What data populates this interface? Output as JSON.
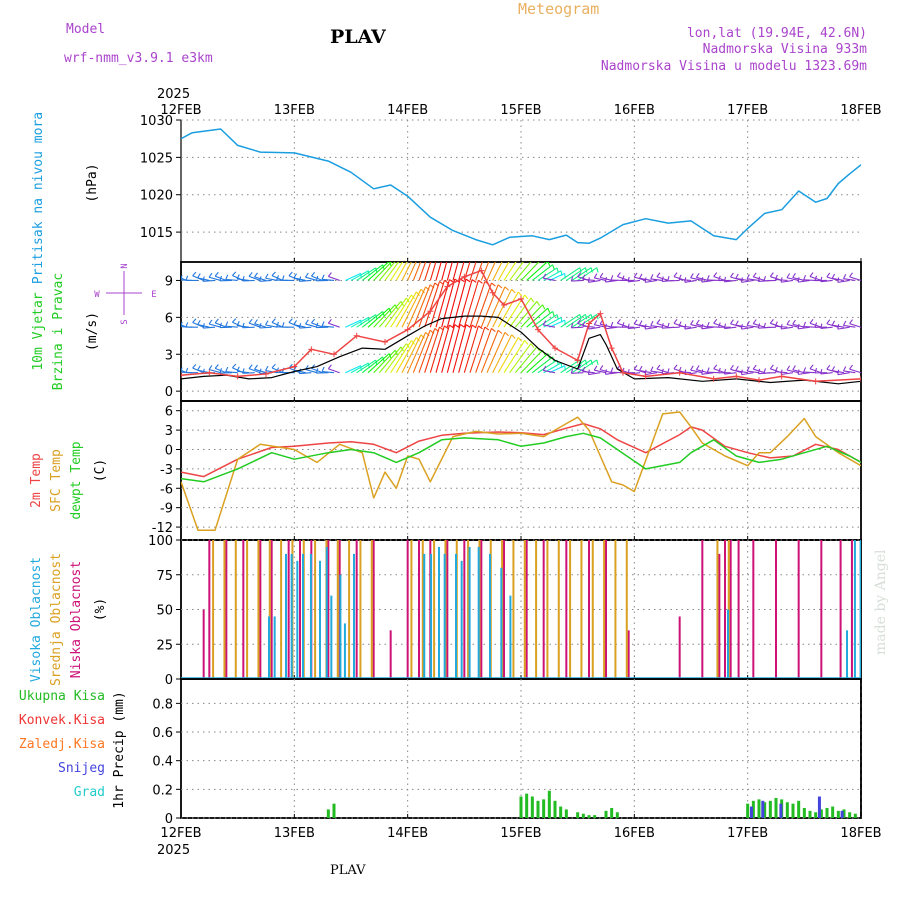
{
  "header": {
    "model_label": "Model",
    "model_name": "wrf-nmm_v3.9.1 e3km",
    "station": "PLAV",
    "meteogram": "Meteogram",
    "lonlat": "lon,lat (19.94E, 42.6N)",
    "elevation": "Nadmorska Visina 933m",
    "model_elevation": "Nadmorska Visina u modelu 1323.69m",
    "footer_station": "PLAV",
    "made_by": "made by Angel"
  },
  "colors": {
    "pressure": "#1a9ee0",
    "temp2m": "#ee4444",
    "sfctemp": "#daa020",
    "dewpt": "#22cc22",
    "high_cloud": "#22aadd",
    "mid_cloud": "#daa020",
    "low_cloud": "#cc1177",
    "total_precip": "#22bb22",
    "conv_precip": "#ee3333",
    "frozen_precip": "#ff7722",
    "snow": "#4444dd",
    "graupel": "#22cccc",
    "header_purple": "#aa44cc",
    "header_orange": "#e8b060"
  },
  "chart_data": {
    "type": "line",
    "x_start_year": "2025",
    "x_end_year": "2025",
    "x_ticks": [
      "12FEB",
      "13FEB",
      "14FEB",
      "15FEB",
      "16FEB",
      "17FEB",
      "18FEB"
    ],
    "panels": [
      {
        "id": "pressure",
        "type": "line",
        "ylabel_main": "Pritisak na nivou mora",
        "ylabel_unit": "(hPa)",
        "ylim": [
          1011,
          1030
        ],
        "yticks": [
          "1015",
          "1020",
          "1025",
          "1030"
        ],
        "yticks_values": [
          1015,
          1020,
          1025,
          1030
        ],
        "series": [
          {
            "name": "Pritisak",
            "x": [
              0,
              0.1,
              0.35,
              0.5,
              0.7,
              1.0,
              1.3,
              1.5,
              1.7,
              1.85,
              2.0,
              2.2,
              2.4,
              2.6,
              2.75,
              2.9,
              3.1,
              3.25,
              3.4,
              3.5,
              3.6,
              3.7,
              3.9,
              4.1,
              4.3,
              4.5,
              4.7,
              4.9,
              5.0,
              5.15,
              5.3,
              5.45,
              5.6,
              5.7,
              5.8,
              5.9,
              6.0
            ],
            "values": [
              1027.5,
              1028.3,
              1028.8,
              1026.6,
              1025.7,
              1025.6,
              1024.5,
              1023.0,
              1020.8,
              1021.3,
              1019.8,
              1017.0,
              1015.2,
              1014.0,
              1013.3,
              1014.3,
              1014.5,
              1014.0,
              1014.6,
              1013.6,
              1013.5,
              1014.2,
              1016.0,
              1016.8,
              1016.2,
              1016.5,
              1014.5,
              1014.0,
              1015.5,
              1017.5,
              1018.0,
              1020.5,
              1019.0,
              1019.5,
              1021.5,
              1022.8,
              1024.0
            ]
          }
        ]
      },
      {
        "id": "wind",
        "type": "line",
        "ylabel_main": "10m Vjetar",
        "ylabel_sub": "Brzina i Pravac",
        "ylabel_unit": "(m/s)",
        "compass_labels": [
          "N",
          "W",
          "E",
          "S"
        ],
        "ylim": [
          -0.8,
          10.5
        ],
        "yticks": [
          "0",
          "3",
          "6",
          "9"
        ],
        "yticks_values": [
          0,
          3,
          6,
          9
        ],
        "barb_levels": [
          9,
          5.2,
          1.5
        ],
        "series": [
          {
            "name": "Brzina",
            "x": [
              0,
              0.2,
              0.4,
              0.6,
              0.8,
              1.0,
              1.2,
              1.4,
              1.6,
              1.8,
              2.0,
              2.15,
              2.3,
              2.5,
              2.65,
              2.8,
              3.0,
              3.15,
              3.3,
              3.5,
              3.6,
              3.7,
              3.75,
              3.85,
              4.0,
              4.3,
              4.6,
              4.9,
              5.2,
              5.5,
              5.8,
              6.0
            ],
            "values": [
              1.0,
              1.2,
              1.3,
              1.0,
              1.1,
              1.6,
              2.0,
              2.8,
              3.5,
              3.4,
              4.5,
              5.3,
              5.9,
              6.1,
              6.1,
              6.0,
              4.8,
              3.5,
              2.5,
              1.8,
              4.3,
              4.6,
              3.8,
              1.8,
              1.0,
              1.1,
              0.8,
              1.0,
              0.7,
              0.9,
              0.6,
              0.8
            ]
          },
          {
            "name": "Udari",
            "x": [
              0,
              0.25,
              0.5,
              0.75,
              1.0,
              1.15,
              1.35,
              1.55,
              1.8,
              2.0,
              2.2,
              2.35,
              2.5,
              2.65,
              2.75,
              2.85,
              3.0,
              3.15,
              3.3,
              3.5,
              3.6,
              3.7,
              3.8,
              3.9,
              4.1,
              4.4,
              4.7,
              4.9,
              5.1,
              5.3,
              5.6,
              6.0
            ],
            "values": [
              1.3,
              1.5,
              1.2,
              1.4,
              2.0,
              3.4,
              3.0,
              4.5,
              4.0,
              5.0,
              6.5,
              8.5,
              9.3,
              9.8,
              8.0,
              7.0,
              7.5,
              5.0,
              3.5,
              2.5,
              5.5,
              6.3,
              3.5,
              1.5,
              1.2,
              1.5,
              1.0,
              1.2,
              0.9,
              1.2,
              0.8,
              1.0
            ]
          }
        ]
      },
      {
        "id": "temperature",
        "type": "line",
        "ylabel_lines": [
          "2m Temp",
          "SFC Temp",
          "dewpt Temp"
        ],
        "ylabel_unit": "(C)",
        "ylim": [
          -14,
          7.5
        ],
        "yticks": [
          "-12",
          "-9",
          "-6",
          "-3",
          "0",
          "3",
          "6"
        ],
        "yticks_values": [
          -12,
          -9,
          -6,
          -3,
          0,
          3,
          6
        ],
        "series": [
          {
            "name": "2m Temp",
            "x": [
              0,
              0.2,
              0.5,
              0.8,
              1.0,
              1.3,
              1.5,
              1.7,
              1.9,
              2.1,
              2.3,
              2.5,
              2.8,
              3.0,
              3.2,
              3.4,
              3.55,
              3.7,
              3.85,
              4.1,
              4.4,
              4.5,
              4.6,
              4.8,
              5.0,
              5.2,
              5.4,
              5.6,
              5.8,
              6.0
            ],
            "values": [
              -3.5,
              -4.2,
              -1.5,
              0.3,
              0.5,
              1.0,
              1.2,
              0.8,
              -0.5,
              1.3,
              2.2,
              2.5,
              2.7,
              2.6,
              2.3,
              3.3,
              4.0,
              3.2,
              1.5,
              -0.5,
              2.3,
              3.5,
              3.0,
              0.5,
              -0.5,
              -1.3,
              -1.0,
              0.8,
              0.0,
              -2.0
            ]
          },
          {
            "name": "SFC Temp",
            "x": [
              0,
              0.15,
              0.3,
              0.5,
              0.7,
              1.0,
              1.2,
              1.4,
              1.6,
              1.7,
              1.8,
              1.9,
              2.0,
              2.1,
              2.2,
              2.4,
              2.6,
              2.8,
              3.0,
              3.2,
              3.4,
              3.5,
              3.6,
              3.7,
              3.8,
              3.9,
              4.0,
              4.25,
              4.4,
              4.5,
              4.6,
              4.8,
              5.0,
              5.1,
              5.2,
              5.35,
              5.5,
              5.6,
              5.8,
              6.0
            ],
            "values": [
              -5,
              -12.5,
              -12.5,
              -1.5,
              0.8,
              0.0,
              -2.0,
              0.8,
              -0.5,
              -7.5,
              -3.5,
              -6.0,
              -1.0,
              -1.5,
              -5.0,
              2.0,
              2.8,
              2.4,
              2.5,
              2.0,
              4.0,
              5.0,
              3.0,
              -1.0,
              -5.0,
              -5.5,
              -6.5,
              5.5,
              5.8,
              3.5,
              1.0,
              -1.0,
              -2.5,
              -0.5,
              -0.5,
              2.0,
              4.8,
              2.0,
              -0.5,
              -2.5
            ]
          },
          {
            "name": "dewpt Temp",
            "x": [
              0,
              0.2,
              0.5,
              0.8,
              1.0,
              1.3,
              1.5,
              1.7,
              1.9,
              2.1,
              2.3,
              2.5,
              2.8,
              3.0,
              3.2,
              3.4,
              3.55,
              3.7,
              3.85,
              4.1,
              4.4,
              4.5,
              4.7,
              4.9,
              5.1,
              5.3,
              5.5,
              5.7,
              5.9,
              6.0
            ],
            "values": [
              -4.5,
              -5.0,
              -3.0,
              -0.5,
              -1.5,
              -0.5,
              0.0,
              -0.5,
              -2.0,
              -0.5,
              1.5,
              1.8,
              1.5,
              0.5,
              1.0,
              2.0,
              2.5,
              1.8,
              0.0,
              -3.0,
              -2.0,
              -0.5,
              1.5,
              -1.0,
              -2.0,
              -1.5,
              -0.5,
              0.5,
              -1.0,
              -2.0
            ]
          }
        ]
      },
      {
        "id": "cloud",
        "type": "bar",
        "ylabel_lines": [
          "Visoka Oblacnost",
          "Srednja Oblacnost",
          "Niska Oblacnost"
        ],
        "ylabel_unit": "(%)",
        "ylim": [
          0,
          100
        ],
        "yticks": [
          "0",
          "25",
          "50",
          "75",
          "100"
        ],
        "yticks_values": [
          0,
          25,
          50,
          75,
          100
        ],
        "series": [
          {
            "name": "Niska Oblacnost",
            "x": [
              0.2,
              0.25,
              0.4,
              0.55,
              0.7,
              0.8,
              0.95,
              1.05,
              1.15,
              1.3,
              1.4,
              1.55,
              1.7,
              1.85,
              2.0,
              2.1,
              2.2,
              2.35,
              2.5,
              2.65,
              2.85,
              3.05,
              3.2,
              3.4,
              3.6,
              3.75,
              3.95,
              4.4,
              4.6,
              4.75,
              4.8,
              4.85,
              4.92,
              5.05,
              5.25,
              5.45,
              5.65,
              5.82,
              5.92
            ],
            "values": [
              50,
              100,
              100,
              100,
              100,
              100,
              100,
              100,
              100,
              100,
              100,
              100,
              100,
              35,
              100,
              100,
              100,
              100,
              100,
              100,
              100,
              100,
              100,
              100,
              100,
              100,
              35,
              45,
              100,
              90,
              100,
              100,
              100,
              100,
              100,
              100,
              100,
              100,
              100
            ]
          },
          {
            "name": "Srednja Oblacnost",
            "x": [
              0.27,
              0.37,
              0.47,
              0.57,
              0.67,
              0.77,
              0.87,
              0.97,
              1.07,
              1.17,
              1.27,
              1.37,
              1.47,
              1.57,
              1.67,
              2.02,
              2.12,
              2.22,
              2.32,
              2.42,
              2.52,
              2.62,
              2.72,
              2.82,
              2.92,
              3.02,
              3.12,
              3.22,
              3.32,
              3.42,
              3.52,
              3.62,
              3.72,
              3.82,
              3.92,
              4.72,
              4.82
            ],
            "values": [
              100,
              100,
              100,
              100,
              100,
              100,
              100,
              100,
              100,
              100,
              100,
              100,
              100,
              100,
              100,
              100,
              100,
              100,
              100,
              100,
              100,
              100,
              100,
              100,
              100,
              100,
              100,
              100,
              100,
              100,
              100,
              100,
              100,
              100,
              100,
              100,
              100
            ]
          },
          {
            "name": "Visoka Oblacnost",
            "x": [
              0.75,
              0.8,
              0.9,
              0.95,
              1.0,
              1.05,
              1.12,
              1.2,
              1.26,
              1.3,
              1.38,
              1.42,
              1.5,
              2.12,
              2.18,
              2.25,
              2.3,
              2.4,
              2.45,
              2.52,
              2.6,
              2.7,
              2.8,
              2.88,
              4.8,
              5.85,
              5.92,
              5.97
            ],
            "values": [
              45,
              45,
              90,
              90,
              85,
              90,
              90,
              85,
              95,
              60,
              75,
              40,
              90,
              90,
              90,
              95,
              90,
              90,
              85,
              95,
              95,
              90,
              80,
              60,
              50,
              35,
              100,
              100
            ]
          }
        ]
      },
      {
        "id": "precip",
        "type": "bar",
        "ylabel_lines": [
          "Ukupna Kisa",
          "Konvek.Kisa",
          "Zaledj.Kisa",
          "Snijeg",
          "Grad"
        ],
        "ylabel_unit": "1hr Precip (mm)",
        "ylim": [
          0,
          0.97
        ],
        "yticks": [
          "0",
          "0.2",
          "0.4",
          "0.6",
          "0.8"
        ],
        "yticks_values": [
          0,
          0.2,
          0.4,
          0.6,
          0.8
        ],
        "series": [
          {
            "name": "Ukupna Kisa",
            "x": [
              1.3,
              1.35,
              3.0,
              3.05,
              3.1,
              3.15,
              3.2,
              3.25,
              3.3,
              3.35,
              3.4,
              3.5,
              3.55,
              3.6,
              3.65,
              3.75,
              3.8,
              3.85,
              5.0,
              5.05,
              5.1,
              5.15,
              5.2,
              5.25,
              5.3,
              5.35,
              5.4,
              5.45,
              5.5,
              5.55,
              5.6,
              5.65,
              5.7,
              5.75,
              5.8,
              5.85,
              5.9,
              5.95
            ],
            "values": [
              0.06,
              0.1,
              0.15,
              0.17,
              0.15,
              0.12,
              0.13,
              0.19,
              0.12,
              0.08,
              0.06,
              0.04,
              0.03,
              0.02,
              0.02,
              0.05,
              0.07,
              0.04,
              0.1,
              0.12,
              0.13,
              0.11,
              0.12,
              0.14,
              0.13,
              0.11,
              0.1,
              0.12,
              0.07,
              0.05,
              0.04,
              0.06,
              0.07,
              0.08,
              0.05,
              0.06,
              0.04,
              0.03
            ]
          },
          {
            "name": "Snijeg",
            "x": [
              5.02,
              5.12,
              5.28,
              5.62,
              5.82
            ],
            "values": [
              0.08,
              0.12,
              0.1,
              0.15,
              0.05
            ]
          }
        ]
      }
    ]
  }
}
